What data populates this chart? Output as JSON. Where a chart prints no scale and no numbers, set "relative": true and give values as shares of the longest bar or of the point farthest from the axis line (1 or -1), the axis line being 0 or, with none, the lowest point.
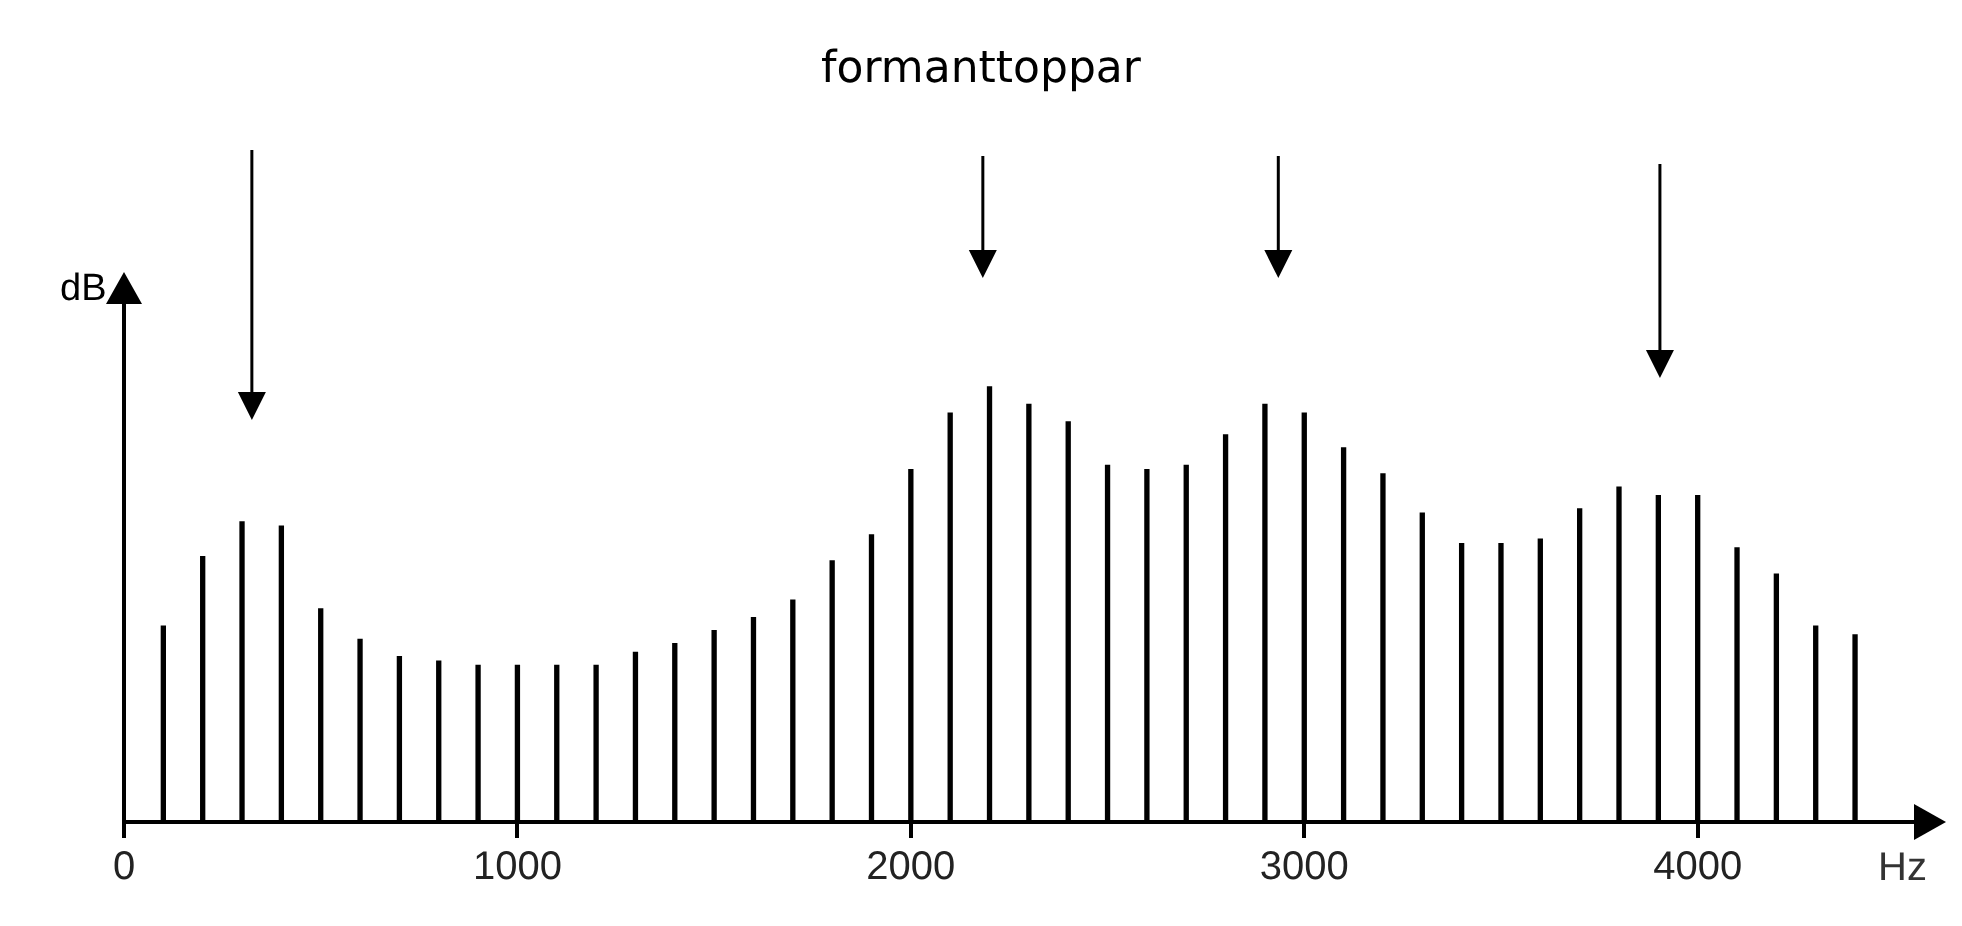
{
  "chart_data": {
    "type": "bar",
    "title": "formanttoppar",
    "xlabel": "Hz",
    "ylabel": "dB",
    "relative": true,
    "color": "#000000",
    "x": [
      100,
      200,
      300,
      400,
      500,
      600,
      700,
      800,
      900,
      1000,
      1100,
      1200,
      1300,
      1400,
      1500,
      1600,
      1700,
      1800,
      1900,
      2000,
      2100,
      2200,
      2300,
      2400,
      2500,
      2600,
      2700,
      2800,
      2900,
      3000,
      3100,
      3200,
      3300,
      3400,
      3500,
      3600,
      3700,
      3800,
      3900,
      4000,
      4100,
      4200,
      4300,
      4400
    ],
    "values": [
      0.45,
      0.61,
      0.69,
      0.68,
      0.49,
      0.42,
      0.38,
      0.37,
      0.36,
      0.36,
      0.36,
      0.36,
      0.39,
      0.41,
      0.44,
      0.47,
      0.51,
      0.6,
      0.66,
      0.81,
      0.94,
      1,
      0.96,
      0.92,
      0.82,
      0.81,
      0.82,
      0.89,
      0.96,
      0.94,
      0.86,
      0.8,
      0.71,
      0.64,
      0.64,
      0.65,
      0.72,
      0.77,
      0.75,
      0.75,
      0.63,
      0.57,
      0.45,
      0.43
    ],
    "xlim": [
      0,
      4560
    ],
    "xticks": [
      0,
      1000,
      2000,
      3000,
      4000
    ],
    "grid": false,
    "legend": false
  }
}
